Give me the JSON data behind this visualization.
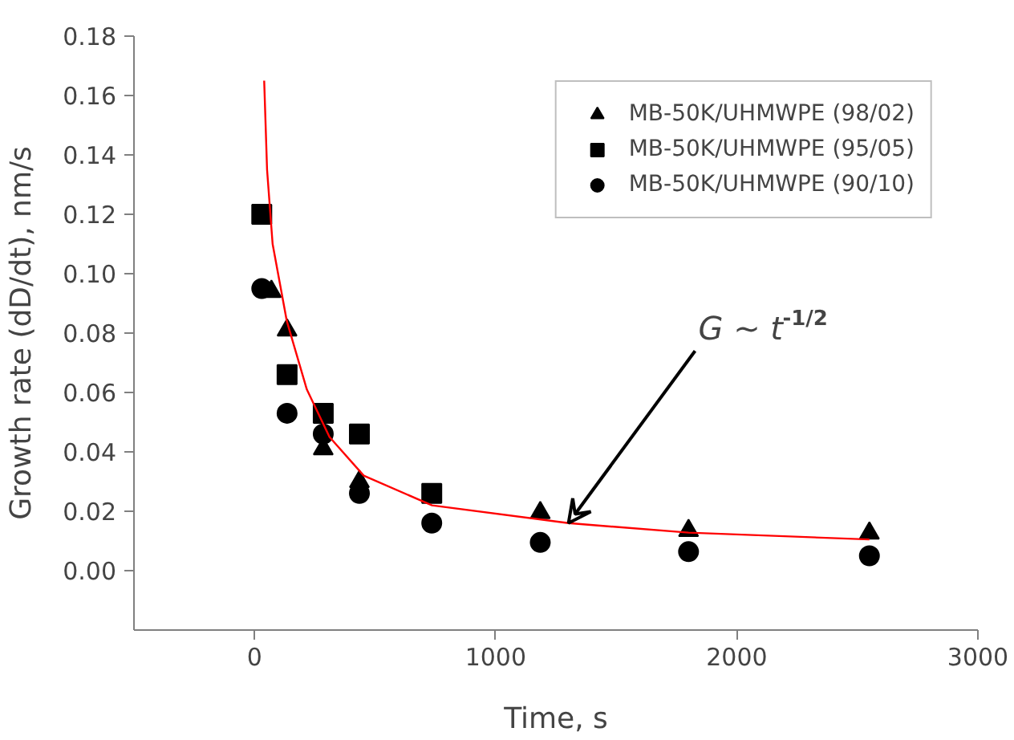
{
  "chart_data": {
    "type": "scatter",
    "xlabel": "Time, s",
    "ylabel": "Growth rate (dD/dt), nm/s",
    "xlim": [
      -500,
      3000
    ],
    "xticks": [
      0,
      1000,
      2000,
      3000
    ],
    "ylim": [
      -0.02,
      0.18
    ],
    "yticks": [
      {
        "value": 0,
        "label": "0.00"
      },
      {
        "value": 0.02,
        "label": "0.02"
      },
      {
        "value": 0.04,
        "label": "0.04"
      },
      {
        "value": 0.06,
        "label": "0.06"
      },
      {
        "value": 0.08,
        "label": "0.08"
      },
      {
        "value": 0.1,
        "label": "0.10"
      },
      {
        "value": 0.12,
        "label": "0.12"
      },
      {
        "value": 0.14,
        "label": "0.14"
      },
      {
        "value": 0.16,
        "label": "0.16"
      },
      {
        "value": 0.18,
        "label": "0.18"
      }
    ],
    "x": [
      30,
      70,
      135,
      285,
      435,
      735,
      1185,
      1800,
      2550
    ],
    "legend": "top right",
    "grid": false,
    "series": [
      {
        "name": "MB-50K/UHMWPE (98/02)",
        "color": "#000000",
        "marker": "triangle",
        "values": [
          null,
          0.094,
          0.081,
          0.041,
          0.03,
          null,
          0.0195,
          0.0135,
          0.0126
        ]
      },
      {
        "name": "MB-50K/UHMWPE (95/05)",
        "color": "#000000",
        "marker": "square",
        "values": [
          0.12,
          null,
          0.066,
          0.053,
          0.046,
          0.026,
          null,
          null,
          null
        ]
      },
      {
        "name": "MB-50K/UHMWPE (90/10)",
        "color": "#000000",
        "marker": "circle",
        "values": [
          0.095,
          null,
          0.053,
          0.046,
          0.026,
          0.016,
          0.0095,
          0.0064,
          0.005
        ]
      },
      {
        "type": "line",
        "color": "#ff0000",
        "marker": "none",
        "line_style": "solid",
        "x": [
          40,
          52,
          75,
          134,
          217,
          311,
          453,
          736,
          1302,
          1800,
          2550
        ],
        "values": [
          0.165,
          0.135,
          0.11,
          0.084,
          0.061,
          0.045,
          0.032,
          0.022,
          0.016,
          0.0128,
          0.0105
        ]
      }
    ],
    "annotations": [
      {
        "text": "G ~ t$^{-1/2}$",
        "x": 1302,
        "y": 0.016
      }
    ]
  }
}
